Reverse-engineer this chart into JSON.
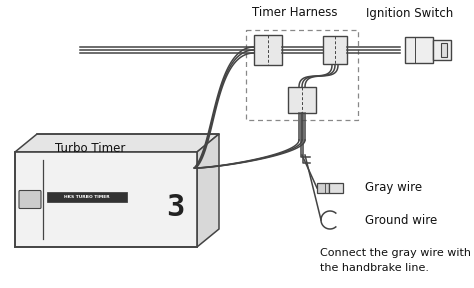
{
  "bg_color": "#ffffff",
  "line_color": "#444444",
  "text_color": "#111111",
  "labels": {
    "timer_harness": "Timer Harness",
    "ignition_switch": "Ignition Switch",
    "turbo_timer": "Turbo Timer",
    "gray_wire": "Gray wire",
    "ground_wire": "Ground wire",
    "note_line1": "Connect the gray wire with",
    "note_line2": "the handbrake line."
  }
}
